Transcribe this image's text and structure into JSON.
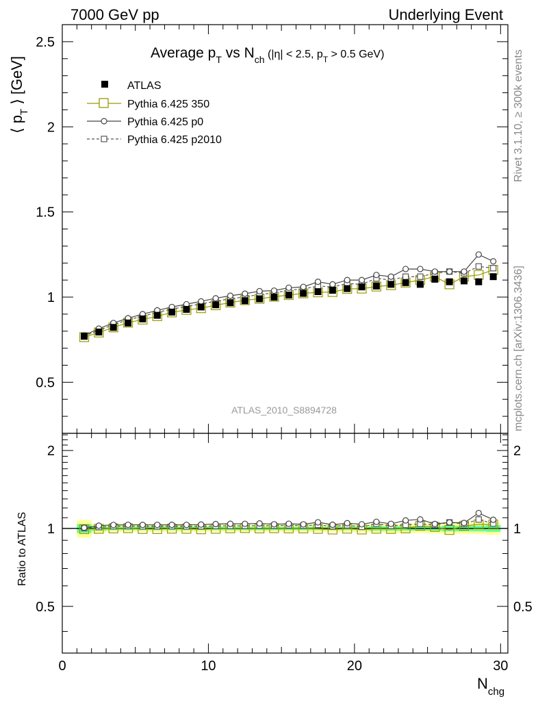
{
  "header": {
    "left": "7000 GeV pp",
    "right": "Underlying Event"
  },
  "side_labels": {
    "top": "Rivet 3.1.10, ≥ 300k events",
    "bottom": "mcplots.cern.ch [arXiv:1306.3436]"
  },
  "title": {
    "main": "Average p",
    "main_sub": "T",
    "vs": " vs N",
    "vs_sub": "ch",
    "cut_open": " (|η| < 2.5, p",
    "cut_sub": "T",
    "cut_close": " > 0.5 GeV)"
  },
  "watermark": "ATLAS_2010_S8894728",
  "y_label": {
    "open": "⟨ p",
    "sub": "T",
    "close": " ⟩ [GeV]"
  },
  "ratio_label": "Ratio to ATLAS",
  "x_label": {
    "main": "N",
    "sub": "chg"
  },
  "legend": [
    {
      "label": "ATLAS",
      "marker": "filled-square",
      "color": "#000000"
    },
    {
      "label": "Pythia 6.425 350",
      "marker": "open-square",
      "color": "#999900"
    },
    {
      "label": "Pythia 6.425 p0",
      "marker": "open-circle",
      "color": "#444444"
    },
    {
      "label": "Pythia 6.425 p2010",
      "marker": "open-square-dashed",
      "color": "#555555"
    }
  ],
  "colors": {
    "band_outer": "#ffff99",
    "band_inner": "#66ff99",
    "ref_line": "#000000"
  },
  "chart_data": {
    "type": "scatter",
    "x": [
      1.5,
      2.5,
      3.5,
      4.5,
      5.5,
      6.5,
      7.5,
      8.5,
      9.5,
      10.5,
      11.5,
      12.5,
      13.5,
      14.5,
      15.5,
      16.5,
      17.5,
      18.5,
      19.5,
      20.5,
      21.5,
      22.5,
      23.5,
      24.5,
      25.5,
      26.5,
      27.5,
      28.5,
      29.5
    ],
    "xlim": [
      0,
      30.5
    ],
    "ylim": [
      0.2,
      2.6
    ],
    "ratio_ylim": [
      0.33,
      2.33
    ],
    "x_ticks": [
      0,
      10,
      20,
      30
    ],
    "y_ticks": [
      0.5,
      1,
      1.5,
      2,
      2.5
    ],
    "ratio_ticks": [
      0.5,
      1,
      2
    ],
    "series": [
      {
        "name": "ATLAS",
        "values": [
          0.77,
          0.795,
          0.822,
          0.848,
          0.872,
          0.893,
          0.912,
          0.928,
          0.942,
          0.955,
          0.967,
          0.979,
          0.99,
          1.0,
          1.012,
          1.022,
          1.032,
          1.04,
          1.05,
          1.06,
          1.065,
          1.075,
          1.085,
          1.075,
          1.105,
          1.09,
          1.095,
          1.09,
          1.12
        ]
      },
      {
        "name": "Pythia 6.425 350",
        "values": [
          0.765,
          0.792,
          0.822,
          0.85,
          0.868,
          0.888,
          0.91,
          0.925,
          0.935,
          0.952,
          0.968,
          0.982,
          0.99,
          1.002,
          1.012,
          1.022,
          1.028,
          1.03,
          1.048,
          1.05,
          1.062,
          1.07,
          1.085,
          1.1,
          1.12,
          1.075,
          1.12,
          1.13,
          1.16
        ]
      },
      {
        "name": "Pythia 6.425 p0",
        "values": [
          0.775,
          0.815,
          0.848,
          0.876,
          0.9,
          0.922,
          0.942,
          0.958,
          0.975,
          0.993,
          1.008,
          1.02,
          1.035,
          1.038,
          1.055,
          1.06,
          1.09,
          1.075,
          1.1,
          1.1,
          1.13,
          1.12,
          1.165,
          1.165,
          1.15,
          1.15,
          1.15,
          1.25,
          1.21
        ]
      },
      {
        "name": "Pythia 6.425 p2010",
        "values": [
          0.772,
          0.805,
          0.838,
          0.866,
          0.888,
          0.91,
          0.93,
          0.945,
          0.96,
          0.976,
          0.99,
          1.002,
          1.015,
          1.025,
          1.04,
          1.048,
          1.065,
          1.06,
          1.08,
          1.075,
          1.11,
          1.1,
          1.12,
          1.12,
          1.14,
          1.15,
          1.14,
          1.18,
          1.17
        ]
      }
    ],
    "ratio_band_outer": [
      0.08,
      0.04,
      0.03,
      0.03,
      0.03,
      0.03,
      0.03,
      0.03,
      0.03,
      0.03,
      0.03,
      0.03,
      0.03,
      0.03,
      0.03,
      0.03,
      0.03,
      0.03,
      0.03,
      0.035,
      0.035,
      0.04,
      0.04,
      0.04,
      0.045,
      0.045,
      0.05,
      0.05,
      0.055
    ],
    "ratio_band_inner": [
      0.04,
      0.02,
      0.015,
      0.015,
      0.015,
      0.015,
      0.015,
      0.015,
      0.015,
      0.015,
      0.015,
      0.015,
      0.015,
      0.015,
      0.015,
      0.015,
      0.015,
      0.015,
      0.015,
      0.015,
      0.02,
      0.02,
      0.02,
      0.02,
      0.02,
      0.025,
      0.025,
      0.025,
      0.03
    ]
  }
}
